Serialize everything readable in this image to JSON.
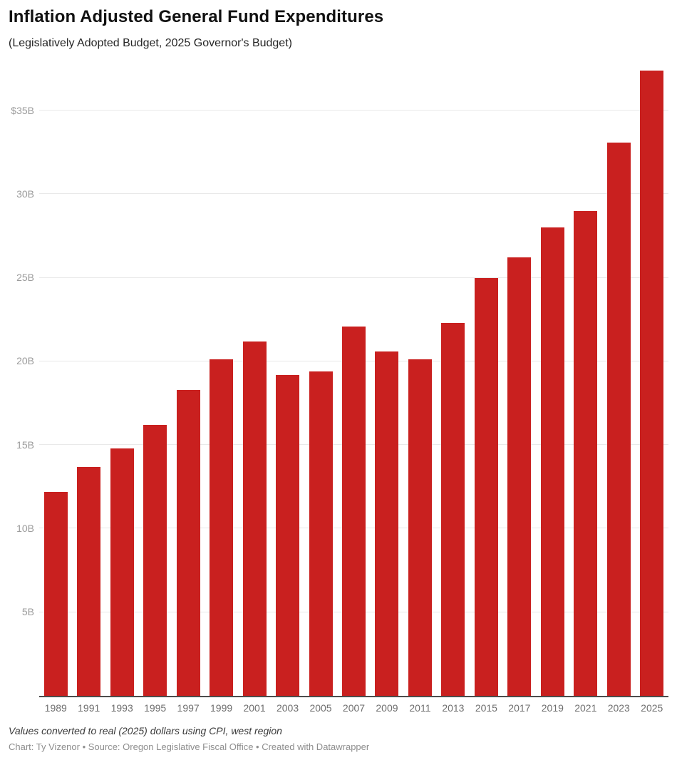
{
  "header": {
    "title": "Inflation Adjusted General Fund Expenditures",
    "subtitle": "(Legislatively Adopted Budget, 2025 Governor's Budget)"
  },
  "chart_data": {
    "type": "bar",
    "title": "Inflation Adjusted General Fund Expenditures",
    "subtitle": "(Legislatively Adopted Budget, 2025 Governor's Budget)",
    "categories": [
      "1989",
      "1991",
      "1993",
      "1995",
      "1997",
      "1999",
      "2001",
      "2003",
      "2005",
      "2007",
      "2009",
      "2011",
      "2013",
      "2015",
      "2017",
      "2019",
      "2021",
      "2023",
      "2025"
    ],
    "values": [
      12.2,
      13.7,
      14.8,
      16.2,
      18.3,
      20.1,
      21.2,
      19.2,
      19.4,
      22.1,
      20.6,
      20.1,
      22.3,
      25.0,
      26.2,
      28.0,
      29.0,
      33.1,
      37.4
    ],
    "unit": "billions of dollars",
    "xlabel": "",
    "ylabel": "",
    "ylim": [
      0,
      37.7
    ],
    "grid": "horizontal",
    "legend": "none",
    "yticks": [
      {
        "value": 5,
        "label": "5B"
      },
      {
        "value": 10,
        "label": "10B"
      },
      {
        "value": 15,
        "label": "15B"
      },
      {
        "value": 20,
        "label": "20B"
      },
      {
        "value": 25,
        "label": "25B"
      },
      {
        "value": 30,
        "label": "30B"
      },
      {
        "value": 35,
        "label": "$35B"
      }
    ],
    "colors": {
      "bar": "#c9201f",
      "gridline": "#e9e9e9",
      "axis_line": "#4c4c4c",
      "y_tick_text": "#9b9b9b",
      "x_tick_text": "#6f6f6f"
    }
  },
  "footer": {
    "note": "Values converted to real (2025) dollars using CPI, west region",
    "byline": "Chart: Ty Vizenor • Source: Oregon Legislative Fiscal Office • Created with Datawrapper"
  }
}
